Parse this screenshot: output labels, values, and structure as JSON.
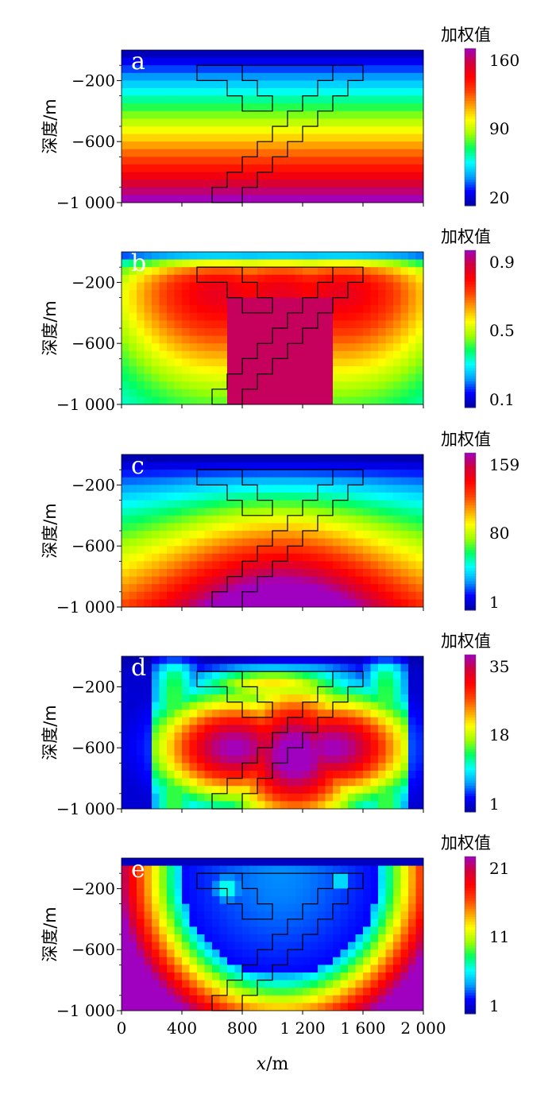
{
  "chart_data": {
    "type": "heatmap",
    "xlabel_var": "x",
    "xlabel_unit": "/m",
    "x_ticks": [
      0,
      400,
      800,
      1200,
      1600,
      2000
    ],
    "x_tick_labels": [
      "0",
      "400",
      "800",
      "1 200",
      "1 600",
      "2 000"
    ],
    "xlim": [
      0,
      2000
    ],
    "x_cells": 40,
    "z_cells": 20,
    "colormap": [
      "#0000a0",
      "#0000ff",
      "#00a0ff",
      "#00ffff",
      "#00ff60",
      "#a0ff00",
      "#ffff00",
      "#ffa000",
      "#ff4000",
      "#ff0000",
      "#d00040",
      "#a000c0"
    ],
    "model_outline": [
      [
        500,
        -100
      ],
      [
        1600,
        -100
      ],
      [
        1600,
        -200
      ],
      [
        1500,
        -200
      ],
      [
        1500,
        -300
      ],
      [
        1400,
        -300
      ],
      [
        1400,
        -400
      ],
      [
        1300,
        -400
      ],
      [
        1300,
        -500
      ],
      [
        1200,
        -500
      ],
      [
        1200,
        -600
      ],
      [
        1100,
        -600
      ],
      [
        1100,
        -700
      ],
      [
        1000,
        -700
      ],
      [
        1000,
        -800
      ],
      [
        900,
        -800
      ],
      [
        900,
        -900
      ],
      [
        800,
        -900
      ],
      [
        800,
        -1000
      ],
      [
        600,
        -1000
      ],
      [
        600,
        -900
      ],
      [
        700,
        -900
      ],
      [
        700,
        -800
      ],
      [
        800,
        -800
      ],
      [
        800,
        -700
      ],
      [
        900,
        -700
      ],
      [
        900,
        -600
      ],
      [
        1000,
        -600
      ],
      [
        1000,
        -500
      ],
      [
        1100,
        -500
      ],
      [
        1100,
        -400
      ],
      [
        1200,
        -400
      ],
      [
        1200,
        -300
      ],
      [
        1300,
        -300
      ],
      [
        1300,
        -200
      ],
      [
        1400,
        -200
      ],
      [
        1400,
        -100
      ]
    ],
    "model_outline_2": [
      [
        500,
        -100
      ],
      [
        800,
        -100
      ],
      [
        800,
        -200
      ],
      [
        900,
        -200
      ],
      [
        900,
        -300
      ],
      [
        1000,
        -300
      ],
      [
        1000,
        -400
      ],
      [
        800,
        -400
      ],
      [
        800,
        -300
      ],
      [
        700,
        -300
      ],
      [
        700,
        -200
      ],
      [
        600,
        -200
      ],
      [
        600,
        -200
      ],
      [
        500,
        -200
      ]
    ],
    "panels": [
      {
        "letter": "a",
        "ylabel": "深度/m",
        "y_ticks": [
          -200,
          -600,
          -1000
        ],
        "y_tick_labels": [
          "−200",
          "−600",
          "−1 000"
        ],
        "ylim": [
          -1000,
          0
        ],
        "colorbar_title": "加权值",
        "colorbar_ticks": [
          "160",
          "90",
          "20"
        ],
        "colorbar_range": [
          20,
          170
        ],
        "pattern": "depth"
      },
      {
        "letter": "b",
        "ylabel": "深度/m",
        "y_ticks": [
          -200,
          -600,
          -1000
        ],
        "y_tick_labels": [
          "−200",
          "−600",
          "−1 000"
        ],
        "ylim": [
          -1000,
          0
        ],
        "colorbar_title": "加权值",
        "colorbar_ticks": [
          "0.9",
          "0.5",
          "0.1"
        ],
        "colorbar_range": [
          0.05,
          1.0
        ],
        "pattern": "sensitivity"
      },
      {
        "letter": "c",
        "ylabel": "深度/m",
        "y_ticks": [
          -200,
          -600,
          -1000
        ],
        "y_tick_labels": [
          "−200",
          "−600",
          "−1 000"
        ],
        "ylim": [
          -1000,
          0
        ],
        "colorbar_title": "加权值",
        "colorbar_ticks": [
          "159",
          "80",
          "1"
        ],
        "colorbar_range": [
          1,
          170
        ],
        "pattern": "combined"
      },
      {
        "letter": "d",
        "ylabel": "深度/m",
        "y_ticks": [
          -200,
          -600,
          -1000
        ],
        "y_tick_labels": [
          "−200",
          "−600",
          "−1 000"
        ],
        "ylim": [
          -1000,
          0
        ],
        "colorbar_title": "加权值",
        "colorbar_ticks": [
          "35",
          "18",
          "1"
        ],
        "colorbar_range": [
          1,
          37
        ],
        "pattern": "bowl"
      },
      {
        "letter": "e",
        "ylabel": "深度/m",
        "y_ticks": [
          -200,
          -600,
          -1000
        ],
        "y_tick_labels": [
          "−200",
          "−600",
          "−1 000"
        ],
        "ylim": [
          -1000,
          0
        ],
        "colorbar_title": "加权值",
        "colorbar_ticks": [
          "21",
          "11",
          "1"
        ],
        "colorbar_range": [
          1,
          23
        ],
        "pattern": "ring"
      }
    ]
  }
}
